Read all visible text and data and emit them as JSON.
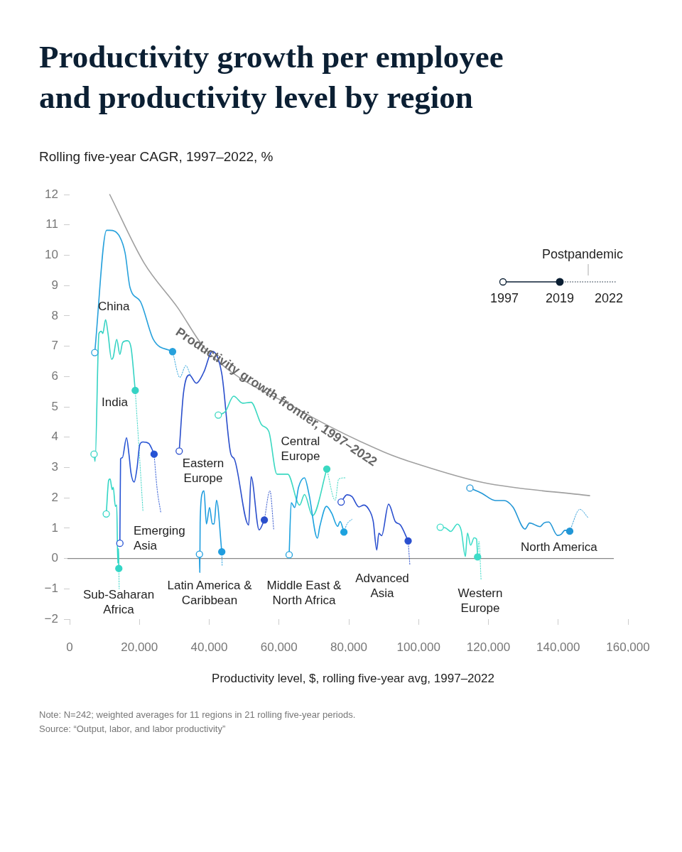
{
  "chart_data": {
    "type": "line",
    "title": "Productivity growth per employee and productivity level by region",
    "subtitle": "Rolling five-year CAGR, 1997–2022, %",
    "xlabel": "Productivity level, $, rolling five-year avg, 1997–2022",
    "xlim": [
      0,
      160000
    ],
    "xticks": [
      0,
      {
        "value": 20000,
        "label": "20,000"
      },
      {
        "value": 40000,
        "label": "40,000"
      },
      {
        "value": 60000,
        "label": "60,000"
      },
      {
        "value": 80000,
        "label": "80,000"
      },
      {
        "value": 100000,
        "label": "100,000"
      },
      {
        "value": 120000,
        "label": "120,000"
      },
      {
        "value": 140000,
        "label": "140,000"
      },
      {
        "value": 160000,
        "label": "160,000"
      }
    ],
    "ylim": [
      -2,
      12
    ],
    "yticks": [
      {
        "value": -2,
        "label": "−2"
      },
      {
        "value": -1,
        "label": "−1"
      },
      0,
      1,
      2,
      3,
      4,
      5,
      6,
      7,
      8,
      9,
      10,
      11,
      12
    ],
    "ref_lines": [
      {
        "axis": "y",
        "value": 0,
        "color": "#888888"
      }
    ],
    "annotations": [
      "Postpandemic",
      "1997",
      "2019",
      "2022",
      "Note: N=242; weighted averages for 11 regions in 21 rolling five-year periods.",
      "Source: “Output, labor, and labor productivity”"
    ],
    "series": [
      {
        "name": "Productivity growth frontier, 1997–2022",
        "color": "#a0a0a0",
        "x": [
          11500,
          21300,
          30900,
          39100,
          65600,
          90100,
          100300,
          118600,
          149000
        ],
        "values": [
          12.0,
          9.75,
          8.28,
          6.88,
          4.91,
          3.51,
          3.09,
          2.5,
          2.07
        ]
      },
      {
        "name": "China",
        "type": "line",
        "color": "#27a1dc",
        "x": [
          7200,
          10600,
          11500,
          14400,
          15900,
          17300,
          20300,
          24000,
          29500
        ],
        "values": [
          6.79,
          10.82,
          10.82,
          10.6,
          10.07,
          8.94,
          8.47,
          7.22,
          6.82
        ]
      },
      {
        "type": "line",
        "marker": "none",
        "line_style": "dotted",
        "color": "#27a1dc",
        "x": [
          29500,
          31600,
          33300,
          34600
        ],
        "values": [
          6.82,
          5.97,
          6.36,
          6.05
        ]
      },
      {
        "name": "India",
        "type": "line",
        "color": "#35d3c4",
        "x": [
          7000,
          7300,
          8400,
          9100,
          9500,
          10300,
          11000,
          12000,
          12500,
          13500,
          14400,
          15200,
          16500,
          17600,
          18800
        ],
        "values": [
          3.44,
          3.2,
          7.42,
          7.49,
          7.42,
          7.87,
          7.42,
          6.57,
          6.64,
          7.22,
          6.73,
          7.12,
          7.18,
          6.95,
          5.54
        ]
      },
      {
        "type": "line",
        "marker": "none",
        "line_style": "dotted",
        "color": "#35d3c4",
        "x": [
          18800,
          19900,
          21000
        ],
        "values": [
          5.54,
          3.6,
          1.58
        ]
      },
      {
        "name": "Emerging Asia",
        "type": "line",
        "color": "#2653d4",
        "x": [
          14400,
          14600,
          15100,
          16300,
          17000,
          17600,
          18500,
          19300,
          20100,
          21000,
          22700,
          23500,
          24200
        ],
        "values": [
          0.5,
          3.28,
          3.32,
          3.98,
          3.44,
          2.81,
          2.52,
          2.97,
          3.75,
          3.84,
          3.79,
          3.63,
          3.44
        ]
      },
      {
        "type": "line",
        "marker": "none",
        "line_style": "dotted",
        "color": "#2653d4",
        "x": [
          24200,
          25100,
          26100
        ],
        "values": [
          3.44,
          2.27,
          1.53
        ]
      },
      {
        "name": "Sub-Saharan Africa",
        "type": "line",
        "color": "#33d6c6",
        "x": [
          10500,
          11200,
          11600,
          12200,
          12500,
          13100,
          13500,
          13800,
          14000,
          14100
        ],
        "values": [
          1.47,
          2.58,
          2.62,
          2.27,
          2.35,
          1.72,
          1.76,
          -0.15,
          0.33,
          -0.33
        ]
      },
      {
        "type": "line",
        "marker": "none",
        "line_style": "dotted",
        "color": "#33d6c6",
        "x": [
          14100,
          14200
        ],
        "values": [
          -0.33,
          -1.0
        ]
      },
      {
        "name": "Eastern Europe",
        "type": "line",
        "color": "#2b4fcc",
        "x": [
          31400,
          32600,
          34300,
          36300,
          38400,
          40900,
          43600,
          46200,
          47200,
          51300,
          52000,
          54300,
          55800
        ],
        "values": [
          3.54,
          5.43,
          6.05,
          5.78,
          6.13,
          6.83,
          6.09,
          3.44,
          3.28,
          1.1,
          2.7,
          0.94,
          1.27
        ]
      },
      {
        "type": "line",
        "marker": "none",
        "line_style": "dotted",
        "color": "#2b4fcc",
        "x": [
          55800,
          57400,
          58500
        ],
        "values": [
          1.27,
          2.23,
          0.94
        ]
      },
      {
        "name": "Latin America & Caribbean",
        "type": "line",
        "color": "#1f9ddf",
        "x": [
          37200,
          37300,
          37400,
          38000,
          38500,
          39200,
          40100,
          40900,
          41400,
          42100,
          43600
        ],
        "values": [
          0.14,
          -0.46,
          1.18,
          2.15,
          2.23,
          1.14,
          1.68,
          1.14,
          1.14,
          1.92,
          0.22
        ]
      },
      {
        "type": "line",
        "marker": "none",
        "line_style": "dotted",
        "color": "#1f9ddf",
        "x": [
          43600,
          43700
        ],
        "values": [
          0.22,
          -0.23
        ]
      },
      {
        "name": "Central Europe",
        "type": "line",
        "color": "#3ad8c1",
        "x": [
          42600,
          44600,
          47000,
          49600,
          52000,
          55000,
          57100,
          59400,
          62500,
          65900,
          67300,
          69600,
          73700
        ],
        "values": [
          4.73,
          4.84,
          5.35,
          5.12,
          5.15,
          4.41,
          4.18,
          2.78,
          2.78,
          1.76,
          2.11,
          1.41,
          2.95
        ]
      },
      {
        "type": "line",
        "marker": "none",
        "line_style": "dotted",
        "color": "#3ad8c1",
        "x": [
          73700,
          76100,
          77100,
          79200
        ],
        "values": [
          2.95,
          1.92,
          2.62,
          2.66
        ]
      },
      {
        "name": "Middle East & North Africa",
        "type": "line",
        "color": "#1da2df",
        "x": [
          62900,
          63500,
          64500,
          65600,
          67300,
          68600,
          71000,
          71700,
          73600,
          75100,
          76800,
          77500,
          78600
        ],
        "values": [
          0.12,
          1.84,
          1.68,
          2.35,
          2.66,
          2.11,
          0.67,
          1.06,
          1.72,
          1.49,
          1.06,
          1.22,
          0.87
        ]
      },
      {
        "type": "line",
        "marker": "none",
        "line_style": "dotted",
        "color": "#1da2df",
        "x": [
          78600,
          79500,
          80900
        ],
        "values": [
          0.87,
          1.14,
          1.29
        ]
      },
      {
        "name": "Advanced Asia",
        "type": "line",
        "color": "#2a4fcf",
        "x": [
          77800,
          79500,
          80900,
          82900,
          84300,
          85600,
          87000,
          88000,
          88600,
          89400,
          91400,
          93300,
          94800,
          97000
        ],
        "values": [
          1.86,
          2.1,
          2.04,
          1.7,
          1.76,
          1.64,
          1.22,
          0.28,
          0.83,
          0.75,
          1.79,
          1.22,
          1.1,
          0.58
        ]
      },
      {
        "type": "line",
        "marker": "none",
        "line_style": "dotted",
        "color": "#2a4fcf",
        "x": [
          97000,
          97500
        ],
        "values": [
          0.58,
          -0.23
        ]
      },
      {
        "name": "Western Europe",
        "type": "line",
        "color": "#3ddcc8",
        "x": [
          106200,
          107700,
          109200,
          111100,
          112200,
          113400,
          113600,
          114000,
          114900,
          115900,
          116600,
          116900
        ],
        "values": [
          1.03,
          1.01,
          0.89,
          1.13,
          0.93,
          0.07,
          0.31,
          0.84,
          0.44,
          0.68,
          0.64,
          0.05
        ]
      },
      {
        "type": "line",
        "marker": "none",
        "line_style": "dotted",
        "color": "#3ddcc8",
        "x": [
          116900,
          117300,
          117900
        ],
        "values": [
          0.05,
          0.56,
          -0.71
        ]
      },
      {
        "name": "North America",
        "type": "line",
        "color": "#2196d6",
        "x": [
          114700,
          118100,
          122000,
          124500,
          127000,
          130500,
          131800,
          134800,
          135900,
          137300,
          139800,
          140900,
          141900,
          143300
        ],
        "values": [
          2.32,
          2.15,
          1.91,
          1.91,
          1.7,
          0.97,
          1.17,
          1.05,
          1.17,
          1.2,
          0.76,
          0.8,
          0.93,
          0.9
        ]
      },
      {
        "line_style": "dotted",
        "color": "#2196d6",
        "x": [
          143300,
          146200,
          148600
        ],
        "values": [
          0.9,
          1.62,
          1.34
        ]
      },
      {
        "type": "scatter",
        "marker": "circle",
        "color": "#ffffff",
        "colors": [
          "#27a1dc",
          "#35d3c4",
          "#2653d4",
          "#33d6c6",
          "#2b4fcc",
          "#1f9ddf",
          "#3ad8c1",
          "#1da2df",
          "#2a4fcf",
          "#3ddcc8",
          "#2196d6"
        ],
        "x": [
          7200,
          7000,
          14400,
          10500,
          31400,
          37200,
          42600,
          62900,
          77800,
          106200,
          114700
        ],
        "values": [
          6.79,
          3.44,
          0.5,
          1.47,
          3.54,
          0.14,
          4.73,
          0.12,
          1.86,
          1.03,
          2.32
        ]
      },
      {
        "type": "scatter",
        "marker": "circle",
        "colors": [
          "#27a1dc",
          "#35d3c4",
          "#2653d4",
          "#33d6c6",
          "#2b4fcc",
          "#1f9ddf",
          "#3ad8c1",
          "#1da2df",
          "#2a4fcf",
          "#3ddcc8",
          "#2196d6"
        ],
        "x": [
          29500,
          18800,
          24200,
          14100,
          55800,
          43600,
          73700,
          78600,
          97000,
          116900,
          143300
        ],
        "values": [
          6.82,
          5.54,
          3.44,
          -0.33,
          1.27,
          0.22,
          2.95,
          0.87,
          0.58,
          0.05,
          0.9
        ]
      }
    ]
  }
}
